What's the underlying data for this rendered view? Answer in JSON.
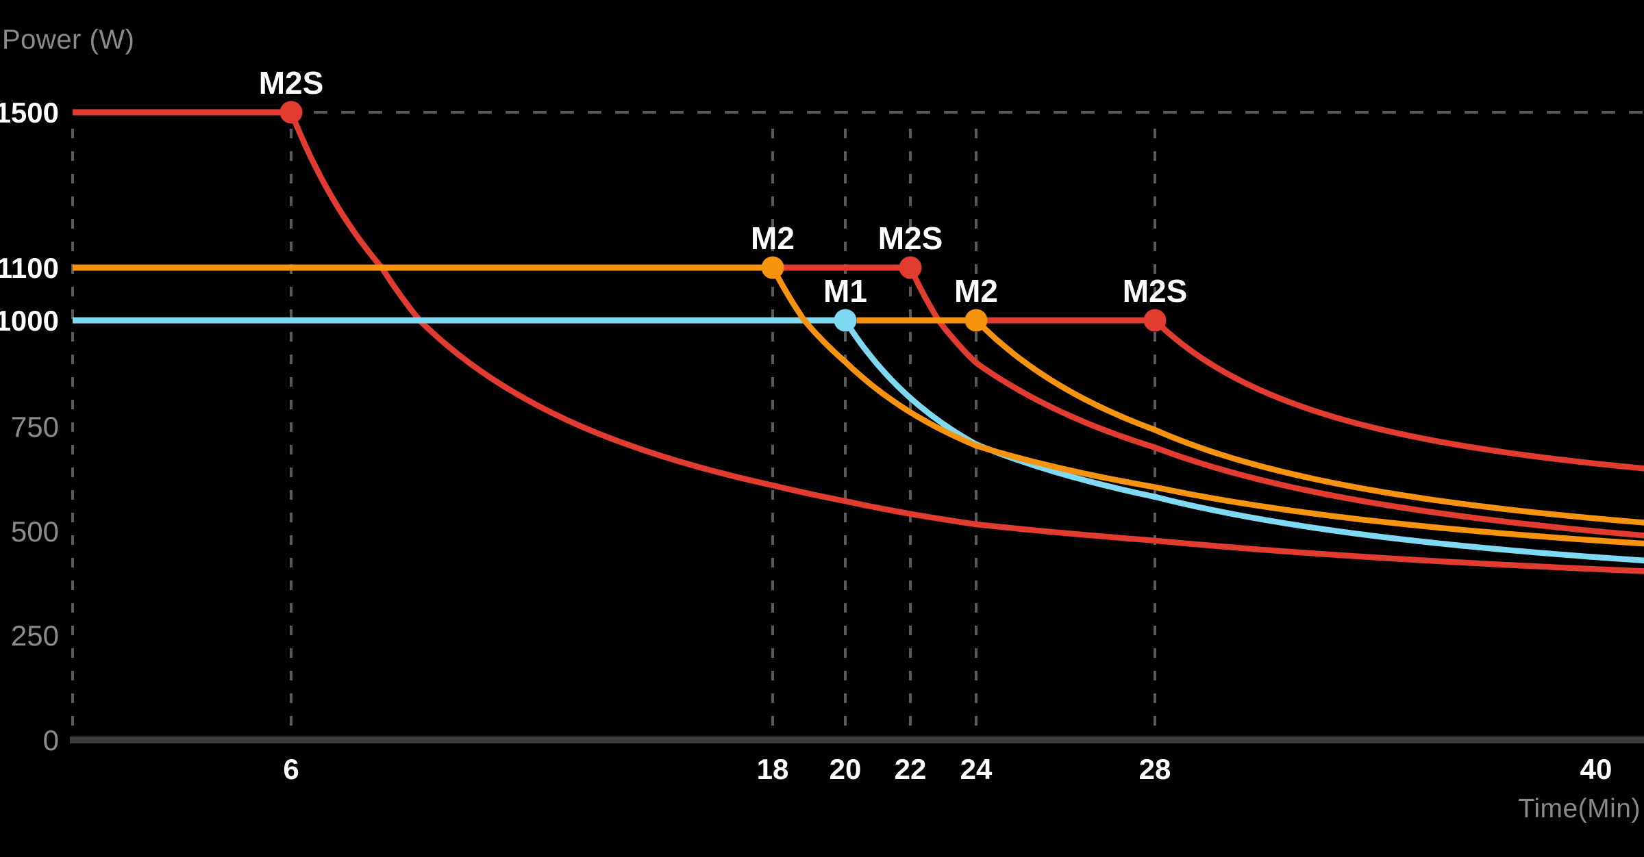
{
  "chart_data": {
    "type": "line",
    "title": "",
    "ylabel": "Power (W)",
    "xlabel": "Time(Min)",
    "x_unit": "min",
    "y_unit": "W",
    "x_ticks": [
      6,
      18,
      20,
      22,
      24,
      28,
      40
    ],
    "x_gridlines_min": [
      0,
      6,
      18,
      20,
      22,
      24,
      28
    ],
    "y_ticks": [
      0,
      250,
      500,
      750,
      1000,
      1100,
      1500
    ],
    "y_ticks_highlighted": [
      1000,
      1100,
      1500
    ],
    "guide_line_w": 1500,
    "x_domain_min": [
      0,
      41.5
    ],
    "y_domain_w": [
      0,
      1560
    ],
    "grid": "dashed vertical gridlines at x ticks, dashed horizontal guide at 1500 W",
    "colors": {
      "red": "#e23b30",
      "orange": "#f8930f",
      "cyan": "#7fd9f3",
      "grid": "#5a5a5a",
      "axis": "#3d3d3d",
      "tick_gray": "#8c8c8c",
      "label_white": "#ffffff",
      "axis_title_gray": "#8a8a8a",
      "background": "#000000"
    },
    "runs": [
      {
        "model": "M2S",
        "label": "M2S",
        "color_key": "red",
        "z": 0,
        "power_w": 1500,
        "sustain_min": 6,
        "plateau_from_min": 0,
        "decay": {
          "A": 5924,
          "t_offset_min": 1.24,
          "floor_w": 256
        },
        "approx_points_min_w": [
          [
            0,
            1500
          ],
          [
            6,
            1500
          ],
          [
            8,
            1130
          ],
          [
            9.2,
            1000
          ],
          [
            15,
            690
          ],
          [
            25,
            505
          ],
          [
            41,
            405
          ]
        ]
      },
      {
        "model": "M2",
        "label": "M2",
        "color_key": "orange",
        "z": 2,
        "power_w": 1100,
        "sustain_min": 18,
        "plateau_from_min": 0,
        "decay": {
          "A": 4754,
          "t_offset_min": 12.0,
          "floor_w": 308
        },
        "approx_points_min_w": [
          [
            0,
            1100
          ],
          [
            18,
            1100
          ],
          [
            20,
            900
          ],
          [
            24,
            700
          ],
          [
            32,
            545
          ],
          [
            41,
            470
          ]
        ]
      },
      {
        "model": "M2S",
        "label": "M2S",
        "color_key": "red",
        "z": 0,
        "power_w": 1100,
        "sustain_min": 22,
        "plateau_from_min": 18,
        "decay": {
          "A": 4798,
          "t_offset_min": 16.0,
          "floor_w": 300
        },
        "approx_points_min_w": [
          [
            18,
            1100
          ],
          [
            22,
            1100
          ],
          [
            24,
            900
          ],
          [
            28,
            700
          ],
          [
            36,
            540
          ],
          [
            41,
            490
          ]
        ]
      },
      {
        "model": "M1",
        "label": "M1",
        "color_key": "cyan",
        "z": 1,
        "power_w": 1000,
        "sustain_min": 20,
        "plateau_from_min": 0,
        "decay": {
          "A": 4383,
          "t_offset_min": 14.0,
          "floor_w": 269
        },
        "approx_points_min_w": [
          [
            0,
            1000
          ],
          [
            20,
            1000
          ],
          [
            22,
            820
          ],
          [
            26,
            635
          ],
          [
            34,
            490
          ],
          [
            41,
            430
          ]
        ]
      },
      {
        "model": "M2",
        "label": "M2",
        "color_key": "orange",
        "z": 2,
        "power_w": 1000,
        "sustain_min": 24,
        "plateau_from_min": 20.35,
        "decay": {
          "A": 3879,
          "t_offset_min": 18.0,
          "floor_w": 354
        },
        "approx_points_min_w": [
          [
            20,
            1000
          ],
          [
            24,
            1000
          ],
          [
            26,
            840
          ],
          [
            30,
            680
          ],
          [
            38,
            550
          ],
          [
            41,
            520
          ]
        ]
      },
      {
        "model": "M2S",
        "label": "M2S",
        "color_key": "red",
        "z": 0,
        "power_w": 1000,
        "sustain_min": 28,
        "plateau_from_min": 24,
        "decay": {
          "A": 3047,
          "t_offset_min": 22.0,
          "floor_w": 492
        },
        "approx_points_min_w": [
          [
            24,
            1000
          ],
          [
            28,
            1000
          ],
          [
            30,
            875
          ],
          [
            34,
            746
          ],
          [
            41,
            650
          ]
        ]
      }
    ]
  }
}
